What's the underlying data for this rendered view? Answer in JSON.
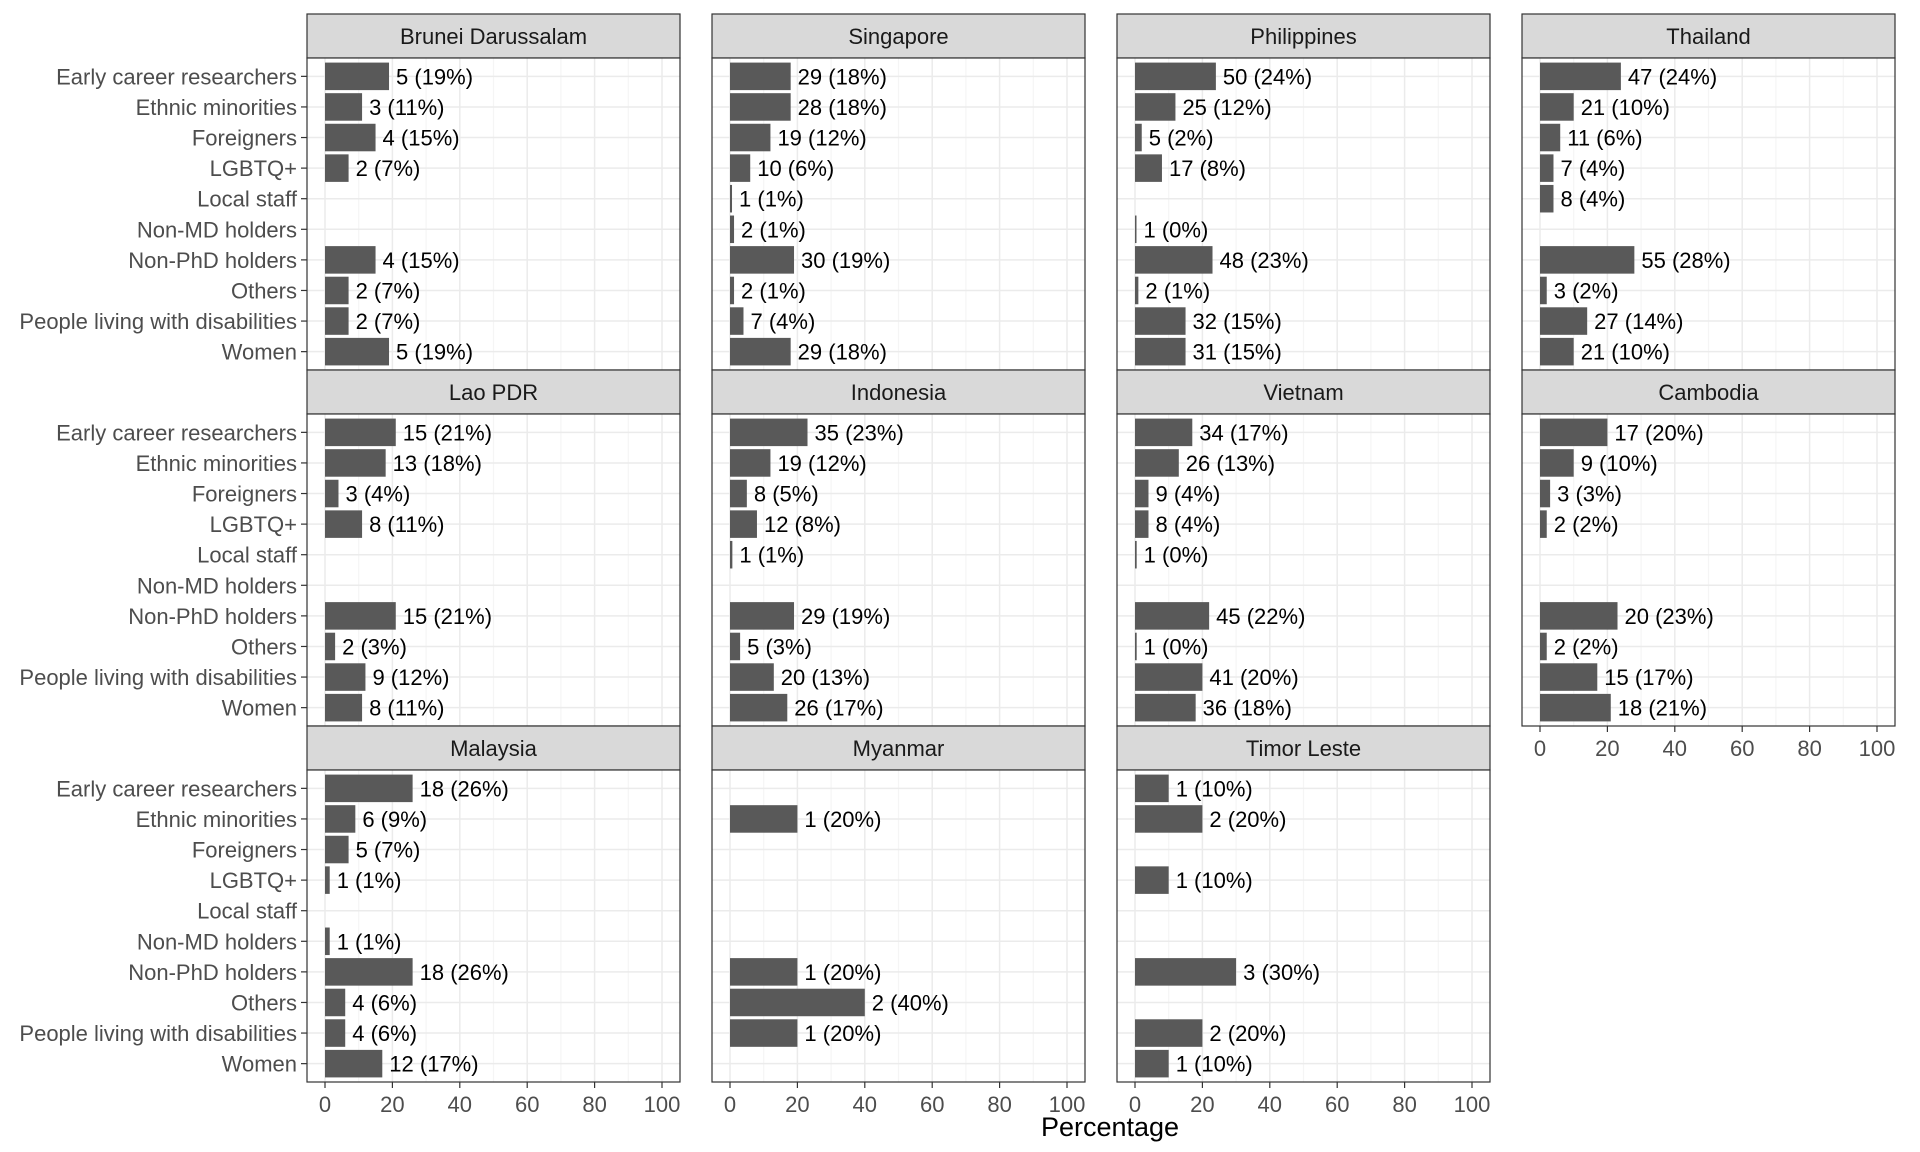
{
  "chart_data": {
    "type": "bar",
    "orientation": "horizontal",
    "xlabel": "Percentage",
    "ylabel": "",
    "xlim": [
      0,
      100
    ],
    "x_ticks": [
      0,
      20,
      40,
      60,
      80,
      100
    ],
    "grid": true,
    "colors": {
      "bar": "#595959",
      "strip": "#d9d9d9",
      "grid_major": "#ebebeb",
      "grid_minor": "#f5f5f5",
      "border": "#333333"
    },
    "categories": [
      "Early career researchers",
      "Ethnic minorities",
      "Foreigners",
      "LGBTQ+",
      "Local staff",
      "Non-MD holders",
      "Non-PhD holders",
      "Others",
      "People living with disabilities",
      "Women"
    ],
    "panels": [
      {
        "name": "Brunei Darussalam",
        "bars": [
          {
            "category": "Early career researchers",
            "value": 19,
            "label": "5 (19%)"
          },
          {
            "category": "Ethnic minorities",
            "value": 11,
            "label": "3 (11%)"
          },
          {
            "category": "Foreigners",
            "value": 15,
            "label": "4 (15%)"
          },
          {
            "category": "LGBTQ+",
            "value": 7,
            "label": "2 (7%)"
          },
          {
            "category": "Non-PhD holders",
            "value": 15,
            "label": "4 (15%)"
          },
          {
            "category": "Others",
            "value": 7,
            "label": "2 (7%)"
          },
          {
            "category": "People living with disabilities",
            "value": 7,
            "label": "2 (7%)"
          },
          {
            "category": "Women",
            "value": 19,
            "label": "5 (19%)"
          }
        ]
      },
      {
        "name": "Singapore",
        "bars": [
          {
            "category": "Early career researchers",
            "value": 18,
            "label": "29 (18%)"
          },
          {
            "category": "Ethnic minorities",
            "value": 18,
            "label": "28 (18%)"
          },
          {
            "category": "Foreigners",
            "value": 12,
            "label": "19 (12%)"
          },
          {
            "category": "LGBTQ+",
            "value": 6,
            "label": "10 (6%)"
          },
          {
            "category": "Local staff",
            "value": 0.6,
            "label": "1 (1%)"
          },
          {
            "category": "Non-MD holders",
            "value": 1.2,
            "label": "2 (1%)"
          },
          {
            "category": "Non-PhD holders",
            "value": 19,
            "label": "30 (19%)"
          },
          {
            "category": "Others",
            "value": 1.2,
            "label": "2 (1%)"
          },
          {
            "category": "People living with disabilities",
            "value": 4,
            "label": "7 (4%)"
          },
          {
            "category": "Women",
            "value": 18,
            "label": "29 (18%)"
          }
        ]
      },
      {
        "name": "Philippines",
        "bars": [
          {
            "category": "Early career researchers",
            "value": 24,
            "label": "50 (24%)"
          },
          {
            "category": "Ethnic minorities",
            "value": 12,
            "label": "25 (12%)"
          },
          {
            "category": "Foreigners",
            "value": 2,
            "label": "5 (2%)"
          },
          {
            "category": "LGBTQ+",
            "value": 8,
            "label": "17 (8%)"
          },
          {
            "category": "Non-MD holders",
            "value": 0.4,
            "label": "1 (0%)"
          },
          {
            "category": "Non-PhD holders",
            "value": 23,
            "label": "48 (23%)"
          },
          {
            "category": "Others",
            "value": 1,
            "label": "2 (1%)"
          },
          {
            "category": "People living with disabilities",
            "value": 15,
            "label": "32 (15%)"
          },
          {
            "category": "Women",
            "value": 15,
            "label": "31 (15%)"
          }
        ]
      },
      {
        "name": "Thailand",
        "bars": [
          {
            "category": "Early career researchers",
            "value": 24,
            "label": "47 (24%)"
          },
          {
            "category": "Ethnic minorities",
            "value": 10,
            "label": "21 (10%)"
          },
          {
            "category": "Foreigners",
            "value": 6,
            "label": "11 (6%)"
          },
          {
            "category": "LGBTQ+",
            "value": 4,
            "label": "7 (4%)"
          },
          {
            "category": "Local staff",
            "value": 4,
            "label": "8 (4%)"
          },
          {
            "category": "Non-PhD holders",
            "value": 28,
            "label": "55 (28%)"
          },
          {
            "category": "Others",
            "value": 2,
            "label": "3 (2%)"
          },
          {
            "category": "People living with disabilities",
            "value": 14,
            "label": "27 (14%)"
          },
          {
            "category": "Women",
            "value": 10,
            "label": "21 (10%)"
          }
        ]
      },
      {
        "name": "Lao PDR",
        "bars": [
          {
            "category": "Early career researchers",
            "value": 21,
            "label": "15 (21%)"
          },
          {
            "category": "Ethnic minorities",
            "value": 18,
            "label": "13 (18%)"
          },
          {
            "category": "Foreigners",
            "value": 4,
            "label": "3 (4%)"
          },
          {
            "category": "LGBTQ+",
            "value": 11,
            "label": "8 (11%)"
          },
          {
            "category": "Non-PhD holders",
            "value": 21,
            "label": "15 (21%)"
          },
          {
            "category": "Others",
            "value": 3,
            "label": "2 (3%)"
          },
          {
            "category": "People living with disabilities",
            "value": 12,
            "label": "9 (12%)"
          },
          {
            "category": "Women",
            "value": 11,
            "label": "8 (11%)"
          }
        ]
      },
      {
        "name": "Indonesia",
        "bars": [
          {
            "category": "Early career researchers",
            "value": 23,
            "label": "35 (23%)"
          },
          {
            "category": "Ethnic minorities",
            "value": 12,
            "label": "19 (12%)"
          },
          {
            "category": "Foreigners",
            "value": 5,
            "label": "8 (5%)"
          },
          {
            "category": "LGBTQ+",
            "value": 8,
            "label": "12 (8%)"
          },
          {
            "category": "Local staff",
            "value": 0.7,
            "label": "1 (1%)"
          },
          {
            "category": "Non-PhD holders",
            "value": 19,
            "label": "29 (19%)"
          },
          {
            "category": "Others",
            "value": 3,
            "label": "5 (3%)"
          },
          {
            "category": "People living with disabilities",
            "value": 13,
            "label": "20 (13%)"
          },
          {
            "category": "Women",
            "value": 17,
            "label": "26 (17%)"
          }
        ]
      },
      {
        "name": "Vietnam",
        "bars": [
          {
            "category": "Early career researchers",
            "value": 17,
            "label": "34 (17%)"
          },
          {
            "category": "Ethnic minorities",
            "value": 13,
            "label": "26 (13%)"
          },
          {
            "category": "Foreigners",
            "value": 4,
            "label": "9 (4%)"
          },
          {
            "category": "LGBTQ+",
            "value": 4,
            "label": "8 (4%)"
          },
          {
            "category": "Local staff",
            "value": 0.5,
            "label": "1 (0%)"
          },
          {
            "category": "Non-PhD holders",
            "value": 22,
            "label": "45 (22%)"
          },
          {
            "category": "Others",
            "value": 0.5,
            "label": "1 (0%)"
          },
          {
            "category": "People living with disabilities",
            "value": 20,
            "label": "41 (20%)"
          },
          {
            "category": "Women",
            "value": 18,
            "label": "36 (18%)"
          }
        ]
      },
      {
        "name": "Cambodia",
        "bars": [
          {
            "category": "Early career researchers",
            "value": 20,
            "label": "17 (20%)"
          },
          {
            "category": "Ethnic minorities",
            "value": 10,
            "label": "9 (10%)"
          },
          {
            "category": "Foreigners",
            "value": 3,
            "label": "3 (3%)"
          },
          {
            "category": "LGBTQ+",
            "value": 2,
            "label": "2 (2%)"
          },
          {
            "category": "Non-PhD holders",
            "value": 23,
            "label": "20 (23%)"
          },
          {
            "category": "Others",
            "value": 2,
            "label": "2 (2%)"
          },
          {
            "category": "People living with disabilities",
            "value": 17,
            "label": "15 (17%)"
          },
          {
            "category": "Women",
            "value": 21,
            "label": "18 (21%)"
          }
        ]
      },
      {
        "name": "Malaysia",
        "bars": [
          {
            "category": "Early career researchers",
            "value": 26,
            "label": "18 (26%)"
          },
          {
            "category": "Ethnic minorities",
            "value": 9,
            "label": "6 (9%)"
          },
          {
            "category": "Foreigners",
            "value": 7,
            "label": "5 (7%)"
          },
          {
            "category": "LGBTQ+",
            "value": 1.4,
            "label": "1 (1%)"
          },
          {
            "category": "Non-MD holders",
            "value": 1.4,
            "label": "1 (1%)"
          },
          {
            "category": "Non-PhD holders",
            "value": 26,
            "label": "18 (26%)"
          },
          {
            "category": "Others",
            "value": 6,
            "label": "4 (6%)"
          },
          {
            "category": "People living with disabilities",
            "value": 6,
            "label": "4 (6%)"
          },
          {
            "category": "Women",
            "value": 17,
            "label": "12 (17%)"
          }
        ]
      },
      {
        "name": "Myanmar",
        "bars": [
          {
            "category": "Ethnic minorities",
            "value": 20,
            "label": "1 (20%)"
          },
          {
            "category": "Non-PhD holders",
            "value": 20,
            "label": "1 (20%)"
          },
          {
            "category": "Others",
            "value": 40,
            "label": "2 (40%)"
          },
          {
            "category": "People living with disabilities",
            "value": 20,
            "label": "1 (20%)"
          }
        ]
      },
      {
        "name": "Timor Leste",
        "bars": [
          {
            "category": "Early career researchers",
            "value": 10,
            "label": "1 (10%)"
          },
          {
            "category": "Ethnic minorities",
            "value": 20,
            "label": "2 (20%)"
          },
          {
            "category": "LGBTQ+",
            "value": 10,
            "label": "1 (10%)"
          },
          {
            "category": "Non-PhD holders",
            "value": 30,
            "label": "3 (30%)"
          },
          {
            "category": "People living with disabilities",
            "value": 20,
            "label": "2 (20%)"
          },
          {
            "category": "Women",
            "value": 10,
            "label": "1 (10%)"
          }
        ]
      }
    ]
  }
}
